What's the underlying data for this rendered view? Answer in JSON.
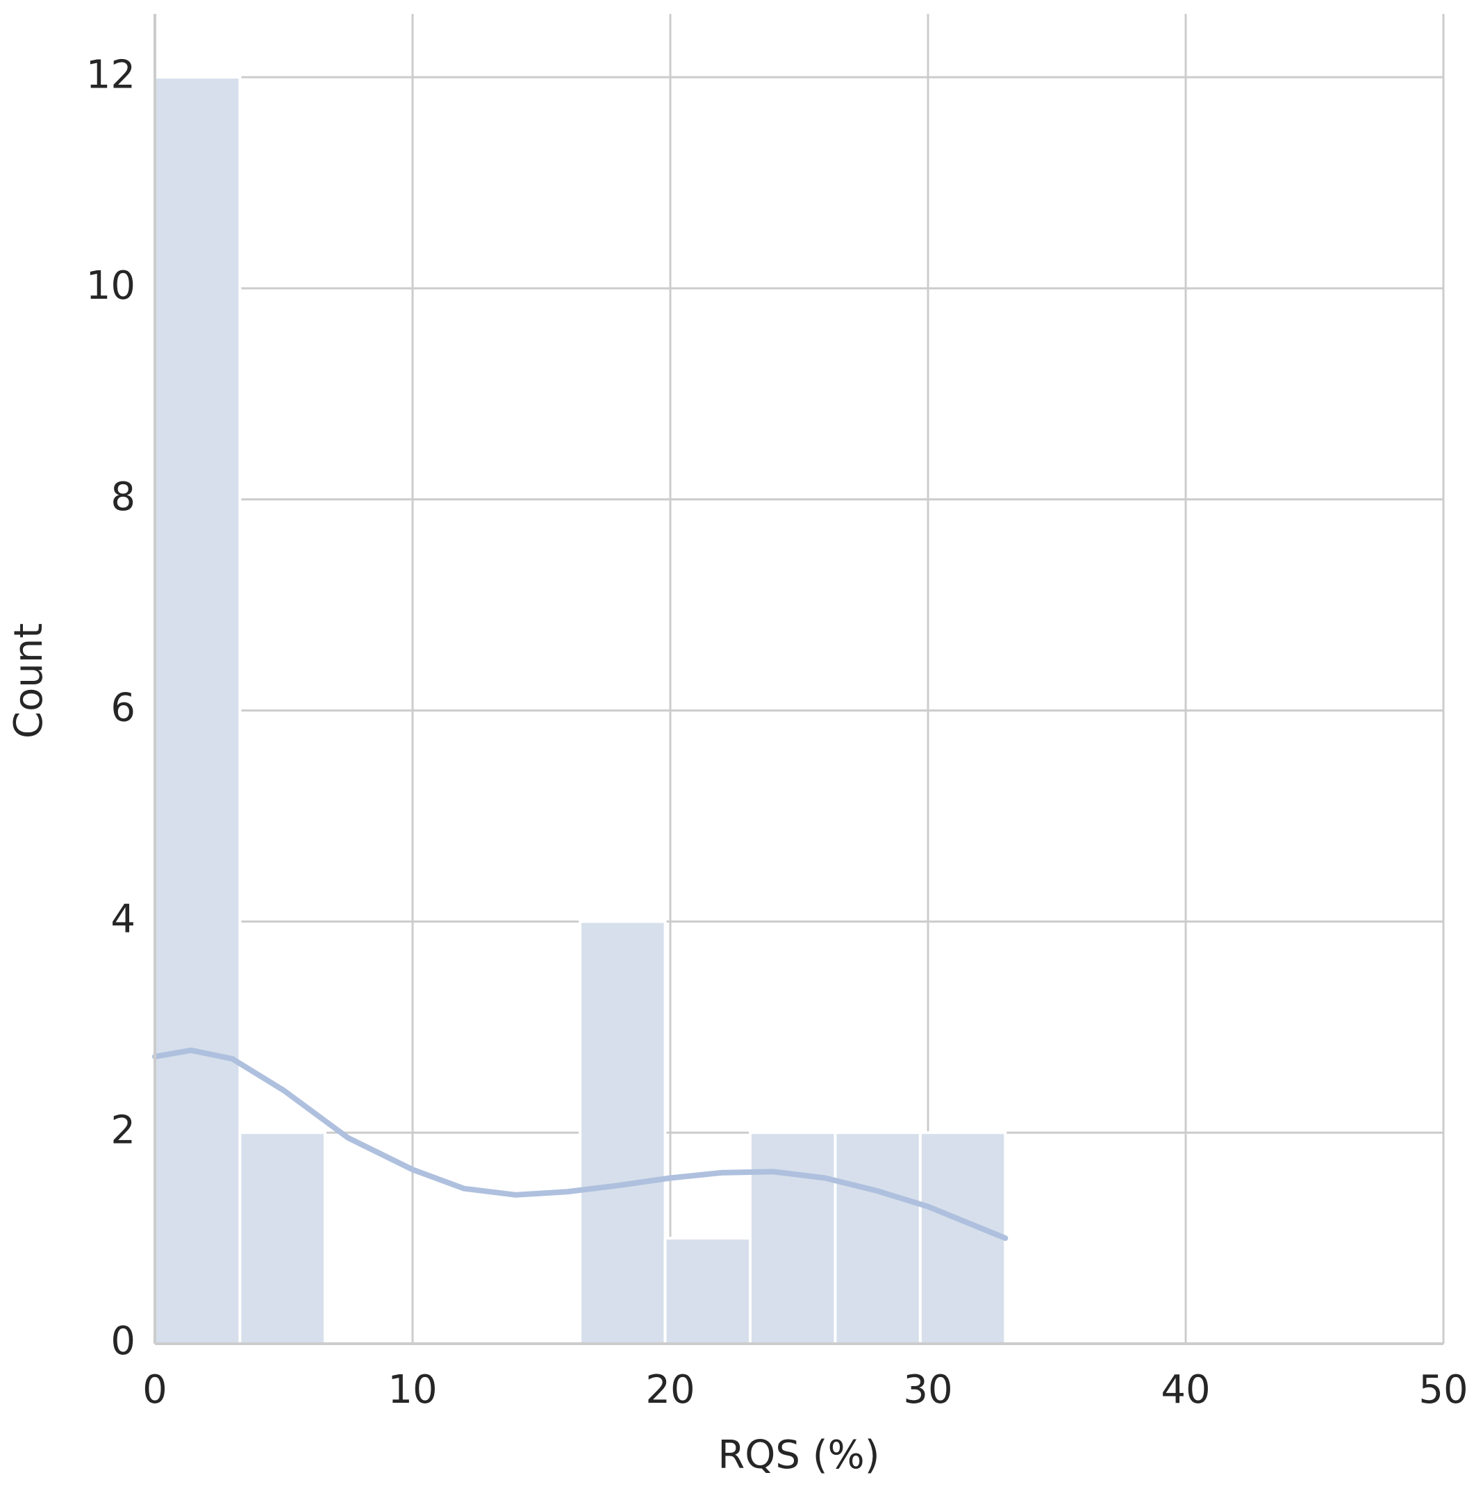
{
  "chart_data": {
    "type": "histogram",
    "x_label": "RQS (%)",
    "y_label": "Count",
    "bins": [
      0,
      3.3,
      6.6,
      9.9,
      13.2,
      16.5,
      19.8,
      23.1,
      26.4,
      29.7,
      33
    ],
    "values": [
      12,
      2,
      0,
      0,
      0,
      4,
      1,
      2,
      2,
      2
    ],
    "color": "#d6dfeb",
    "kde": {
      "color": "#aec0de",
      "x": [
        0,
        1.4,
        3,
        5,
        7.5,
        10,
        12,
        14,
        16,
        18,
        20,
        22,
        24,
        26,
        28,
        30,
        33
      ],
      "y": [
        2.72,
        2.78,
        2.7,
        2.4,
        1.95,
        1.65,
        1.47,
        1.41,
        1.44,
        1.5,
        1.57,
        1.62,
        1.63,
        1.57,
        1.45,
        1.3,
        1.0
      ]
    },
    "xlim": [
      0,
      50
    ],
    "xticks": [
      0,
      10,
      20,
      30,
      40,
      50
    ],
    "ylim": [
      0,
      12.6
    ],
    "yticks": [
      0,
      2,
      4,
      6,
      8,
      10,
      12
    ],
    "grid": true
  }
}
